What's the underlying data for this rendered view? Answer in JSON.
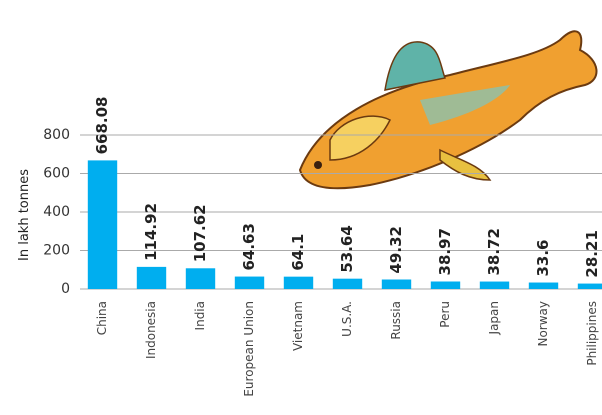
{
  "chart_data": {
    "type": "bar",
    "y_label": "In lakh tonnes",
    "categories": [
      "China",
      "Indonesia",
      "India",
      "European Union",
      "Vietnam",
      "U.S.A.",
      "Russia",
      "Peru",
      "Japan",
      "Norway",
      "Philippines"
    ],
    "values": [
      668.08,
      114.92,
      107.62,
      64.63,
      64.1,
      53.64,
      49.32,
      38.97,
      38.72,
      33.6,
      28.21
    ],
    "color": "#00aeef",
    "ylim": [
      0,
      800
    ],
    "yticks": [
      0,
      200,
      400,
      600,
      800
    ],
    "grid": true
  }
}
